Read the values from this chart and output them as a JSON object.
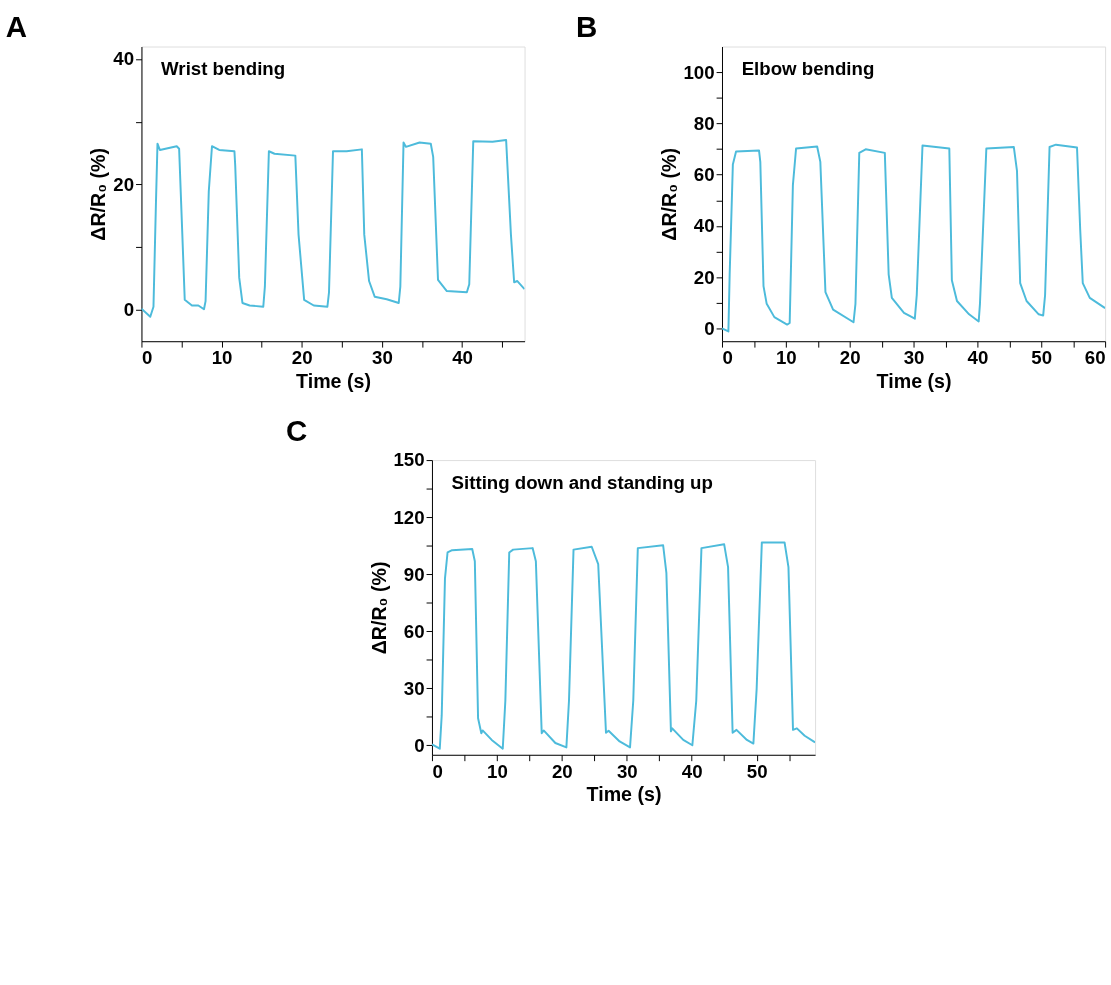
{
  "chart_data": [
    {
      "type": "line",
      "title": "A",
      "xlabel": "Time (s)",
      "ylabel": "ΔR/R₀ (%)",
      "annotations": [
        "Wrist bending"
      ],
      "grid": false,
      "marker": "none",
      "line_style": "solid",
      "xlim": [
        0,
        47.8
      ],
      "ylim": [
        -5,
        42
      ],
      "xticks": [
        0,
        {
          "value": 5,
          "label": null
        },
        10,
        {
          "value": 15,
          "label": null
        },
        20,
        {
          "value": 25,
          "label": null
        },
        30,
        {
          "value": 35,
          "label": null
        },
        40,
        {
          "value": 45,
          "label": null
        }
      ],
      "yticks": [
        0,
        {
          "value": 10,
          "label": null
        },
        20,
        {
          "value": 30,
          "label": null
        },
        40
      ],
      "series": [
        {
          "color": "#4dbbdb",
          "x": [
            0,
            1.1,
            1.5,
            1.8,
            2.0,
            2.3,
            4.4,
            4.7,
            5.1,
            5.4,
            6.3,
            7.1,
            7.8,
            8.0,
            8.4,
            8.8,
            9.7,
            11.6,
            11.7,
            12.2,
            12.6,
            13.5,
            15.2,
            15.4,
            15.9,
            16.6,
            19.2,
            19.6,
            20.3,
            21.5,
            23.2,
            23.4,
            23.9,
            25.6,
            27.5,
            27.8,
            28.4,
            29.1,
            30.6,
            32.1,
            32.3,
            32.7,
            33.0,
            34.7,
            36.1,
            36.4,
            37.0,
            38.1,
            40.6,
            40.9,
            41.4,
            43.8,
            45.5,
            46.1,
            46.5,
            46.9,
            47.8
          ],
          "values": [
            0.2,
            -1.1,
            0.5,
            16.6,
            26.5,
            25.5,
            26.1,
            25.7,
            12,
            1.6,
            0.7,
            0.7,
            0.1,
            1.4,
            18.9,
            26.1,
            25.5,
            25.3,
            23,
            5.1,
            1.1,
            0.7,
            0.5,
            3.7,
            25.3,
            24.9,
            24.6,
            12,
            1.6,
            0.7,
            0.5,
            2.8,
            25.3,
            25.3,
            25.6,
            12,
            4.6,
            2.1,
            1.7,
            1.1,
            3.7,
            26.7,
            26,
            26.7,
            26.5,
            24.4,
            4.8,
            3,
            2.8,
            4.1,
            26.9,
            26.8,
            27.1,
            12,
            4.4,
            4.6,
            3.3
          ]
        }
      ]
    },
    {
      "type": "line",
      "title": "B",
      "xlabel": "Time (s)",
      "ylabel": "ΔR/R₀ (%)",
      "annotations": [
        "Elbow bending"
      ],
      "grid": false,
      "marker": "none",
      "line_style": "solid",
      "xlim": [
        0,
        60
      ],
      "ylim": [
        -5,
        110
      ],
      "xticks": [
        0,
        {
          "value": 5,
          "label": null
        },
        10,
        {
          "value": 15,
          "label": null
        },
        20,
        {
          "value": 25,
          "label": null
        },
        30,
        {
          "value": 35,
          "label": null
        },
        40,
        {
          "value": 45,
          "label": null
        },
        50,
        {
          "value": 55,
          "label": null
        },
        60
      ],
      "yticks": [
        0,
        {
          "value": 10,
          "label": null
        },
        20,
        {
          "value": 30,
          "label": null
        },
        40,
        {
          "value": 50,
          "label": null
        },
        60,
        {
          "value": 70,
          "label": null
        },
        80,
        {
          "value": 90,
          "label": null
        },
        100
      ],
      "series": [
        {
          "color": "#4dbbdb",
          "x": [
            0,
            1.0,
            1.2,
            1.7,
            2.2,
            5.8,
            6.0,
            6.5,
            7.0,
            8.2,
            10.2,
            10.6,
            11.1,
            11.6,
            14.9,
            15.4,
            16.2,
            17.4,
            20.6,
            20.9,
            21.5,
            22.5,
            25.5,
            26.1,
            26.6,
            28.5,
            30.2,
            30.5,
            31.4,
            35.6,
            36.0,
            36.8,
            38.7,
            40.2,
            40.4,
            41.4,
            45.7,
            46.2,
            46.7,
            47.7,
            49.6,
            50.3,
            50.6,
            51.3,
            52.3,
            55.6,
            56.1,
            56.5,
            57.6,
            60
          ],
          "values": [
            0,
            -1.2,
            21,
            64,
            69,
            69.4,
            65,
            16.5,
            9.6,
            4.4,
            1.5,
            2.1,
            55.8,
            70.2,
            71,
            65,
            14.2,
            7.3,
            2.4,
            9.6,
            68.5,
            69.9,
            68.5,
            21.1,
            11.9,
            6.1,
            3.8,
            13,
            71.4,
            70.2,
            18.8,
            10.7,
            5.5,
            2.7,
            9.6,
            70.2,
            70.8,
            61.5,
            17.7,
            10.7,
            5.5,
            5,
            13,
            70.8,
            71.7,
            70.6,
            38.5,
            17.7,
            11.9,
            7.9
          ]
        }
      ]
    },
    {
      "type": "line",
      "title": "C",
      "xlabel": "Time (s)",
      "ylabel": "ΔR/R₀ (%)",
      "annotations": [
        "Sitting down and standing up"
      ],
      "grid": false,
      "marker": "none",
      "line_style": "solid",
      "xlim": [
        0,
        59
      ],
      "ylim": [
        -5,
        150
      ],
      "xticks": [
        0,
        {
          "value": 5,
          "label": null
        },
        10,
        {
          "value": 15,
          "label": null
        },
        20,
        {
          "value": 25,
          "label": null
        },
        30,
        {
          "value": 35,
          "label": null
        },
        40,
        {
          "value": 45,
          "label": null
        },
        50,
        {
          "value": 55,
          "label": null
        }
      ],
      "yticks": [
        0,
        {
          "value": 15,
          "label": null
        },
        30,
        {
          "value": 45,
          "label": null
        },
        60,
        {
          "value": 75,
          "label": null
        },
        90,
        {
          "value": 105,
          "label": null
        },
        120,
        {
          "value": 135,
          "label": null
        },
        150
      ],
      "series": [
        {
          "color": "#4dbbdb",
          "x": [
            0,
            1.2,
            1.5,
            2.0,
            2.4,
            3.1,
            6.2,
            6.6,
            7.1,
            7.6,
            7.8,
            9.2,
            10.9,
            11.3,
            11.9,
            12.5,
            15.5,
            16.0,
            16.9,
            17.2,
            19.0,
            20.7,
            21.1,
            21.8,
            24.6,
            25.6,
            26.8,
            27.2,
            28.9,
            30.5,
            31.0,
            31.7,
            35.6,
            36.1,
            36.8,
            37.0,
            38.7,
            40.1,
            40.7,
            41.5,
            45.0,
            45.6,
            46.3,
            46.9,
            48.5,
            49.5,
            50.0,
            50.8,
            54.3,
            54.9,
            55.6,
            56.2,
            57.4,
            59.0
          ],
          "values": [
            0.5,
            -1.8,
            15.7,
            87.6,
            101.4,
            102.6,
            103.2,
            96.8,
            14.2,
            6.3,
            7.8,
            2.8,
            -1.8,
            23.4,
            101.4,
            102.9,
            103.7,
            96.8,
            6.3,
            7.8,
            1.2,
            -1.1,
            23.4,
            102.9,
            104.4,
            95.3,
            6.6,
            7.6,
            2,
            -1.1,
            23.4,
            103.7,
            105.2,
            90.7,
            7.3,
            8.9,
            2.8,
            0,
            23.4,
            103.7,
            105.7,
            93.7,
            6.6,
            8.1,
            2.8,
            0.9,
            29.5,
            106.7,
            106.7,
            93.7,
            8.1,
            8.9,
            5,
            1.5
          ]
        }
      ]
    }
  ]
}
